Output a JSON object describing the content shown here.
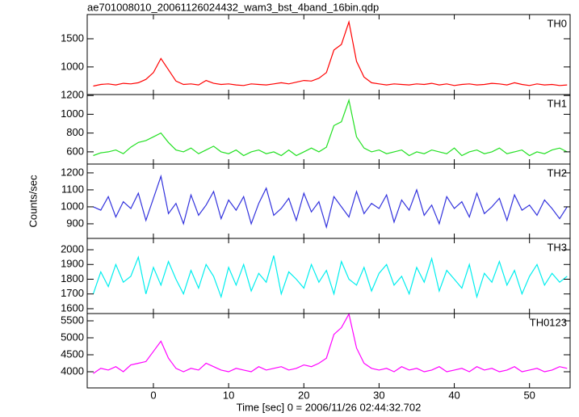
{
  "title": "ae701008010_20061126024432_wam3_bst_4band_16bin.qdp",
  "ylabel": "Counts/sec",
  "xlabel": "Time [sec] 0 = 2006/11/26 02:44:32.702",
  "chart_data": [
    {
      "type": "line",
      "xlim": [
        -8.8,
        55.4
      ],
      "ylim": [
        510,
        1930
      ],
      "yticks": [
        1000,
        1500
      ],
      "x": [
        -8,
        -7,
        -6,
        -5,
        -4,
        -3,
        -2,
        -1,
        0,
        1,
        2,
        3,
        4,
        5,
        6,
        7,
        8,
        9,
        10,
        11,
        12,
        13,
        14,
        15,
        16,
        17,
        18,
        19,
        20,
        21,
        22,
        23,
        24,
        25,
        26,
        27,
        28,
        29,
        30,
        31,
        32,
        33,
        34,
        35,
        36,
        37,
        38,
        39,
        40,
        41,
        42,
        43,
        44,
        45,
        46,
        47,
        48,
        49,
        50,
        51,
        52,
        53,
        54,
        55
      ],
      "series": [
        {
          "name": "TH0",
          "color": "#ff0000",
          "values": [
            660,
            690,
            700,
            680,
            710,
            700,
            720,
            780,
            900,
            1150,
            950,
            750,
            690,
            700,
            680,
            760,
            710,
            690,
            700,
            680,
            670,
            700,
            690,
            680,
            700,
            720,
            700,
            730,
            760,
            750,
            800,
            900,
            1300,
            1400,
            1800,
            1100,
            820,
            720,
            700,
            680,
            700,
            690,
            680,
            700,
            690,
            710,
            680,
            700,
            670,
            690,
            700,
            680,
            690,
            710,
            700,
            680,
            720,
            690,
            670,
            700,
            680,
            690,
            670,
            680
          ]
        }
      ]
    },
    {
      "type": "line",
      "xlim": [
        -8.8,
        55.4
      ],
      "ylim": [
        470,
        1210
      ],
      "yticks": [
        600,
        800,
        1000,
        1200
      ],
      "x": [
        -8,
        -7,
        -6,
        -5,
        -4,
        -3,
        -2,
        -1,
        0,
        1,
        2,
        3,
        4,
        5,
        6,
        7,
        8,
        9,
        10,
        11,
        12,
        13,
        14,
        15,
        16,
        17,
        18,
        19,
        20,
        21,
        22,
        23,
        24,
        25,
        26,
        27,
        28,
        29,
        30,
        31,
        32,
        33,
        34,
        35,
        36,
        37,
        38,
        39,
        40,
        41,
        42,
        43,
        44,
        45,
        46,
        47,
        48,
        49,
        50,
        51,
        52,
        53,
        54,
        55
      ],
      "series": [
        {
          "name": "TH1",
          "color": "#22e022",
          "values": [
            560,
            590,
            600,
            620,
            580,
            650,
            700,
            720,
            760,
            800,
            700,
            620,
            600,
            640,
            580,
            620,
            660,
            600,
            580,
            620,
            560,
            600,
            620,
            580,
            600,
            560,
            620,
            560,
            600,
            640,
            600,
            650,
            880,
            920,
            1150,
            760,
            640,
            600,
            620,
            580,
            600,
            620,
            560,
            600,
            580,
            620,
            600,
            580,
            640,
            560,
            600,
            620,
            580,
            600,
            640,
            580,
            600,
            620,
            560,
            600,
            580,
            620,
            640,
            600
          ]
        }
      ]
    },
    {
      "type": "line",
      "xlim": [
        -8.8,
        55.4
      ],
      "ylim": [
        814,
        1252
      ],
      "yticks": [
        900,
        1000,
        1100,
        1200
      ],
      "x": [
        -8,
        -7,
        -6,
        -5,
        -4,
        -3,
        -2,
        -1,
        0,
        1,
        2,
        3,
        4,
        5,
        6,
        7,
        8,
        9,
        10,
        11,
        12,
        13,
        14,
        15,
        16,
        17,
        18,
        19,
        20,
        21,
        22,
        23,
        24,
        25,
        26,
        27,
        28,
        29,
        30,
        31,
        32,
        33,
        34,
        35,
        36,
        37,
        38,
        39,
        40,
        41,
        42,
        43,
        44,
        45,
        46,
        47,
        48,
        49,
        50,
        51,
        52,
        53,
        54,
        55
      ],
      "series": [
        {
          "name": "TH2",
          "color": "#3333dd",
          "values": [
            1000,
            980,
            1060,
            940,
            1030,
            990,
            1080,
            920,
            1050,
            1180,
            960,
            1020,
            900,
            1070,
            950,
            1010,
            1090,
            930,
            1040,
            980,
            1060,
            900,
            1020,
            1110,
            950,
            990,
            1050,
            920,
            1080,
            970,
            1030,
            880,
            1060,
            1000,
            940,
            1090,
            960,
            1020,
            990,
            1070,
            910,
            1040,
            980,
            1100,
            950,
            1010,
            900,
            1060,
            990,
            1030,
            940,
            1080,
            960,
            1000,
            1050,
            920,
            1070,
            980,
            1010,
            950,
            1040,
            990,
            930,
            1000
          ]
        }
      ]
    },
    {
      "type": "line",
      "xlim": [
        -8.8,
        55.4
      ],
      "ylim": [
        1567,
        2077
      ],
      "yticks": [
        1600,
        1700,
        1800,
        1900,
        2000
      ],
      "x": [
        -8,
        -7,
        -6,
        -5,
        -4,
        -3,
        -2,
        -1,
        0,
        1,
        2,
        3,
        4,
        5,
        6,
        7,
        8,
        9,
        10,
        11,
        12,
        13,
        14,
        15,
        16,
        17,
        18,
        19,
        20,
        21,
        22,
        23,
        24,
        25,
        26,
        27,
        28,
        29,
        30,
        31,
        32,
        33,
        34,
        35,
        36,
        37,
        38,
        39,
        40,
        41,
        42,
        43,
        44,
        45,
        46,
        47,
        48,
        49,
        50,
        51,
        52,
        53,
        54,
        55
      ],
      "series": [
        {
          "name": "TH3",
          "color": "#00eeee",
          "values": [
            1700,
            1850,
            1750,
            1900,
            1780,
            1820,
            1950,
            1700,
            1880,
            1760,
            1920,
            1800,
            1700,
            1860,
            1740,
            1900,
            1820,
            1680,
            1880,
            1760,
            1900,
            1720,
            1840,
            1780,
            1960,
            1700,
            1850,
            1800,
            1740,
            1900,
            1780,
            1860,
            1700,
            1920,
            1800,
            1760,
            1880,
            1720,
            1840,
            1900,
            1760,
            1820,
            1700,
            1880,
            1780,
            1940,
            1720,
            1860,
            1800,
            1740,
            1900,
            1680,
            1840,
            1780,
            1920,
            1760,
            1860,
            1700,
            1820,
            1900,
            1760,
            1840,
            1780,
            1820
          ]
        }
      ]
    },
    {
      "type": "line",
      "xlim": [
        -8.8,
        55.4
      ],
      "ylim": [
        3524,
        5714
      ],
      "yticks": [
        4000,
        4500,
        5000,
        5500
      ],
      "xticks": [
        0,
        10,
        20,
        30,
        40,
        50
      ],
      "x": [
        -8,
        -7,
        -6,
        -5,
        -4,
        -3,
        -2,
        -1,
        0,
        1,
        2,
        3,
        4,
        5,
        6,
        7,
        8,
        9,
        10,
        11,
        12,
        13,
        14,
        15,
        16,
        17,
        18,
        19,
        20,
        21,
        22,
        23,
        24,
        25,
        26,
        27,
        28,
        29,
        30,
        31,
        32,
        33,
        34,
        35,
        36,
        37,
        38,
        39,
        40,
        41,
        42,
        43,
        44,
        45,
        46,
        47,
        48,
        49,
        50,
        51,
        52,
        53,
        54,
        55
      ],
      "series": [
        {
          "name": "TH0123",
          "color": "#ff00ff",
          "values": [
            3950,
            4100,
            4050,
            4150,
            4000,
            4200,
            4250,
            4300,
            4600,
            4900,
            4400,
            4100,
            4000,
            4100,
            4050,
            4250,
            4150,
            4050,
            4000,
            4100,
            4050,
            4000,
            4150,
            4050,
            4100,
            4150,
            4050,
            4100,
            4200,
            4150,
            4250,
            4400,
            5100,
            5300,
            5700,
            4700,
            4250,
            4100,
            4050,
            4100,
            4000,
            4150,
            4050,
            4100,
            4000,
            4050,
            4150,
            4000,
            4050,
            4100,
            4000,
            4150,
            4050,
            4100,
            4000,
            4050,
            4150,
            4000,
            4050,
            4100,
            4000,
            4050,
            4150,
            4100
          ]
        }
      ]
    }
  ]
}
